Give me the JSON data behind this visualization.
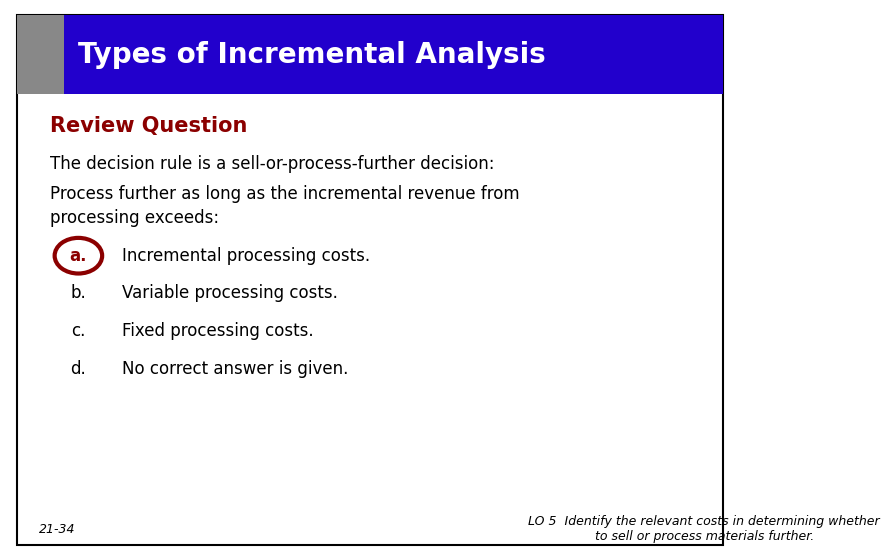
{
  "title": "Types of Incremental Analysis",
  "title_bg": "#2200CC",
  "title_color": "#FFFFFF",
  "title_fontsize": 20,
  "gray_bar_color": "#888888",
  "review_question": "Review Question",
  "review_question_color": "#8B0000",
  "line1": "The decision rule is a sell-or-process-further decision:",
  "line2": "Process further as long as the incremental revenue from",
  "line3": "processing exceeds:",
  "options": [
    {
      "label": "a.",
      "text": "Incremental processing costs.",
      "circle": true
    },
    {
      "label": "b.",
      "text": "Variable processing costs.",
      "circle": false
    },
    {
      "label": "c.",
      "text": "Fixed processing costs.",
      "circle": false
    },
    {
      "label": "d.",
      "text": "No correct answer is given.",
      "circle": false
    }
  ],
  "circle_color": "#8B0000",
  "footer_left": "21-34",
  "footer_right": "LO 5  Identify the relevant costs in determining whether\nto sell or process materials further.",
  "bg_color": "#FFFFFF",
  "text_color": "#000000",
  "border_color": "#000000"
}
